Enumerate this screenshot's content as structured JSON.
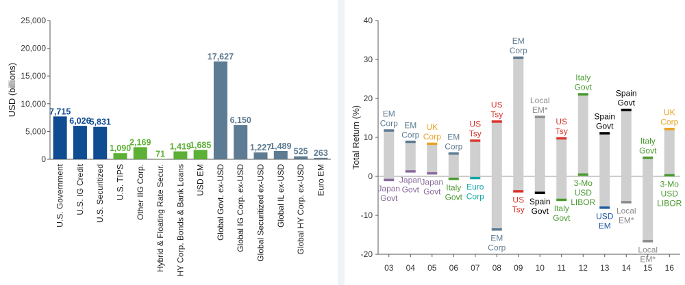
{
  "colors": {
    "us_blue": "#0f4c92",
    "green": "#5cb035",
    "steel": "#5d7b92",
    "range_bar": "#cfcfcf",
    "em_corp": "#5d7b92",
    "japan_govt": "#8a6b9c",
    "uk_corp": "#e8a424",
    "us_tsy": "#d9342b",
    "euro_corp": "#12a6a6",
    "italy_govt": "#4a9a2f",
    "local_em": "#8c8c8c",
    "spain_govt": "#000000",
    "libor": "#4a9a2f",
    "usd_em": "#1f5aa6",
    "axis": "#555555",
    "grid": "#d0d0d0"
  },
  "chart_data": [
    {
      "type": "bar",
      "ylabel": "USD (billions)",
      "ylim": [
        0,
        25000
      ],
      "yticks": [
        0,
        5000,
        10000,
        15000,
        20000,
        25000
      ],
      "ytick_labels": [
        "0",
        "5,000",
        "10,000",
        "15,000",
        "20,000",
        "25,000"
      ],
      "grid": false,
      "categories": [
        "U.S. Government",
        "U.S. IG Credit",
        "U.S. Securitized",
        "U.S. TIPS",
        "Other IIG Corp.",
        "Hybrid & Floating Rate Secur.",
        "HY Corp. Bonds & Bank Loans",
        "USD EM",
        "Global Govt. ex-USD",
        "Global IG Corp. ex-USD",
        "Global Securitized ex-USD",
        "Global IL ex-USD",
        "Global HY Corp. ex-USD",
        "Euro EM"
      ],
      "values": [
        7715,
        6026,
        5831,
        1090,
        2169,
        71,
        1419,
        1685,
        17627,
        6150,
        1227,
        1489,
        525,
        263
      ],
      "value_labels": [
        "7,715",
        "6,026",
        "5,831",
        "1,090",
        "2,169",
        "71",
        "1,419",
        "1,685",
        "17,627",
        "6,150",
        "1,227",
        "1,489",
        "525",
        "263"
      ],
      "bar_colors": [
        "us_blue",
        "us_blue",
        "us_blue",
        "green",
        "green",
        "green",
        "green",
        "green",
        "steel",
        "steel",
        "steel",
        "steel",
        "steel",
        "steel"
      ]
    },
    {
      "type": "range",
      "ylabel": "Total Return (%)",
      "ylim": [
        -20,
        40
      ],
      "yticks": [
        -20,
        -10,
        0,
        10,
        20,
        30,
        40
      ],
      "ytick_labels": [
        "-20",
        "-10",
        "0",
        "10",
        "20",
        "30",
        "40"
      ],
      "grid": false,
      "categories": [
        "03",
        "04",
        "05",
        "06",
        "07",
        "08",
        "09",
        "10",
        "11",
        "12",
        "13",
        "14",
        "15",
        "16"
      ],
      "series": [
        {
          "name": "Best sector",
          "values": [
            11.8,
            8.9,
            8.4,
            5.9,
            9.2,
            14.1,
            30.5,
            15.3,
            9.8,
            21.1,
            11.1,
            17.1,
            4.8,
            12.2
          ],
          "labels": [
            "EM Corp",
            "EM Corp",
            "UK Corp",
            "EM Corp",
            "US Tsy",
            "US Tsy",
            "EM Corp",
            "Local EM*",
            "US Tsy",
            "Italy Govt",
            "Spain Govt",
            "Spain Govt",
            "Italy Govt",
            "UK Corp"
          ],
          "label_colors": [
            "em_corp",
            "em_corp",
            "uk_corp",
            "em_corp",
            "us_tsy",
            "us_tsy",
            "em_corp",
            "local_em",
            "us_tsy",
            "italy_govt",
            "spain_govt",
            "spain_govt",
            "italy_govt",
            "uk_corp"
          ]
        },
        {
          "name": "Worst sector",
          "values": [
            -0.9,
            1.3,
            0.8,
            -0.6,
            -0.4,
            -13.6,
            -3.8,
            -4.2,
            -6.0,
            0.5,
            -8.0,
            -6.6,
            -16.6,
            0.3
          ],
          "labels": [
            "Japan Govt",
            "Japan Govt",
            "Japan Govt",
            "Italy Govt",
            "Euro Corp",
            "EM Corp",
            "US Tsy",
            "Spain Govt",
            "Italy Govt",
            "3-Mo USD LIBOR",
            "USD EM",
            "Local EM*",
            "Local EM*",
            "3-Mo USD LIBOR"
          ],
          "label_colors": [
            "japan_govt",
            "japan_govt",
            "japan_govt",
            "italy_govt",
            "euro_corp",
            "em_corp",
            "us_tsy",
            "spain_govt",
            "italy_govt",
            "libor",
            "usd_em",
            "local_em",
            "local_em",
            "libor"
          ]
        }
      ]
    }
  ]
}
